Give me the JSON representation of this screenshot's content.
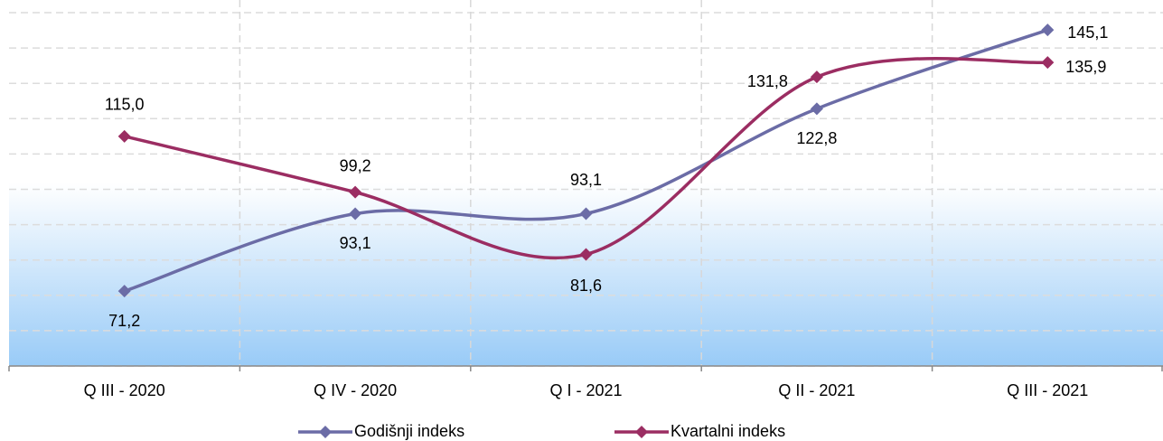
{
  "chart_data": {
    "type": "line",
    "categories": [
      "Q III - 2020",
      "Q IV - 2020",
      "Q I - 2021",
      "Q II - 2021",
      "Q III - 2021"
    ],
    "series": [
      {
        "name": "Godišnji indeks",
        "color": "#6b6ca6",
        "values": [
          71.2,
          93.1,
          93.1,
          122.8,
          145.1
        ],
        "value_labels": [
          "71,2",
          "93,1",
          "93,1",
          "122,8",
          "145,1"
        ]
      },
      {
        "name": "Kvartalni indeks",
        "color": "#9b2d62",
        "values": [
          115.0,
          99.2,
          81.6,
          131.8,
          135.9
        ],
        "value_labels": [
          "115,0",
          "99,2",
          "81,6",
          "131,8",
          "135,9"
        ]
      }
    ],
    "ylim": [
      50,
      150
    ],
    "yticks": [
      50,
      60,
      70,
      80,
      90,
      100,
      110,
      120,
      130,
      140,
      150
    ],
    "grid": true,
    "smooth": true,
    "legend": "bottom"
  }
}
